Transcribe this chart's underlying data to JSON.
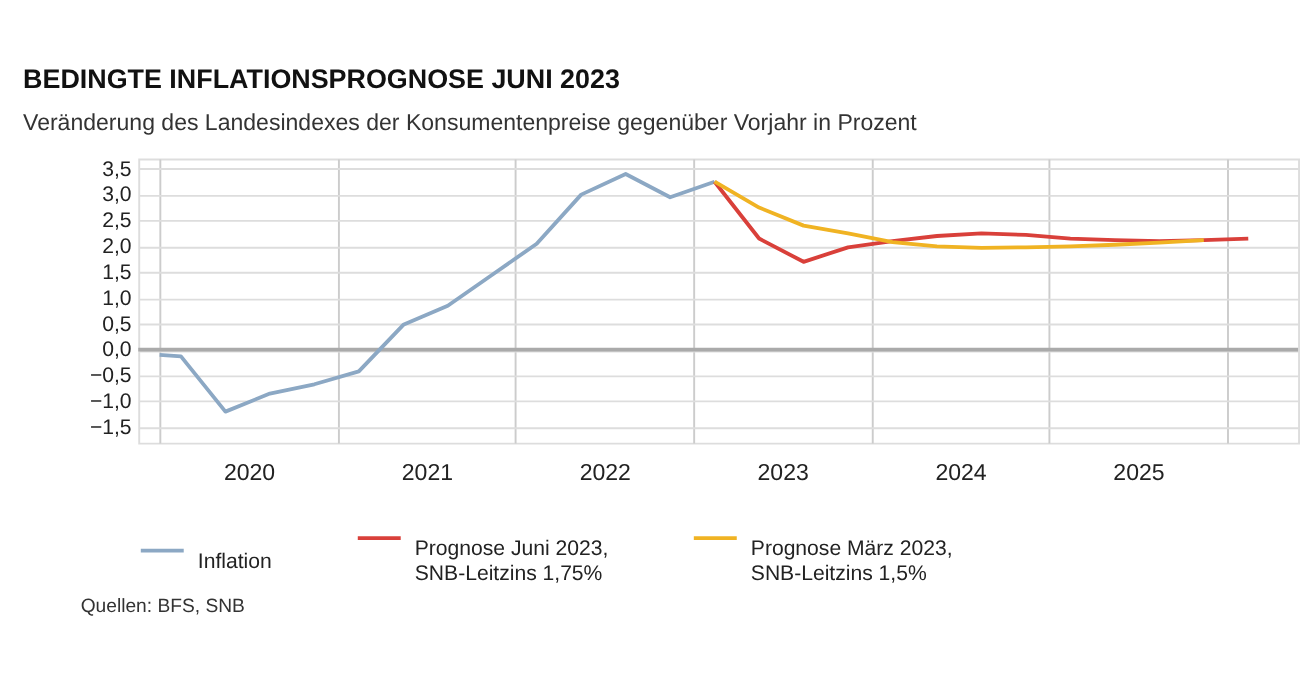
{
  "chart_data": {
    "type": "line",
    "title": "BEDINGTE INFLATIONSPROGNOSE JUNI 2023",
    "subtitle": "Veränderung des Landesindexes der Konsumentenpreise gegenüber Vorjahr in Prozent",
    "annotations": [
      "Quellen: BFS, SNB"
    ],
    "series": [
      {
        "name": "Inflation",
        "color": "#8ca8c4",
        "x": [
          2020.0,
          2020.12,
          2020.37,
          2020.62,
          2020.87,
          2021.12,
          2021.37,
          2021.62,
          2021.87,
          2022.12,
          2022.37,
          2022.62,
          2022.87,
          2023.12
        ],
        "values": [
          -0.1,
          -0.13,
          -1.2,
          -0.85,
          -0.67,
          -0.42,
          0.48,
          0.85,
          1.45,
          2.05,
          3.0,
          3.4,
          2.95,
          3.25
        ]
      },
      {
        "name": "Prognose Juni 2023,\nSNB-Leitzins 1,75%",
        "color": "#d9403a",
        "x": [
          2023.12,
          2023.37,
          2023.62,
          2023.87,
          2024.12,
          2024.37,
          2024.62,
          2024.87,
          2025.12,
          2025.37,
          2025.62,
          2025.87,
          2026.12
        ],
        "values": [
          3.25,
          2.15,
          1.7,
          1.98,
          2.1,
          2.2,
          2.25,
          2.22,
          2.15,
          2.12,
          2.1,
          2.12,
          2.15
        ]
      },
      {
        "name": "Prognose März 2023,\nSNB-Leitzins 1,5%",
        "color": "#f0b323",
        "x": [
          2023.12,
          2023.37,
          2023.62,
          2023.87,
          2024.12,
          2024.37,
          2024.62,
          2024.87,
          2025.12,
          2025.37,
          2025.62,
          2025.87
        ],
        "values": [
          3.25,
          2.75,
          2.4,
          2.25,
          2.08,
          2.0,
          1.97,
          1.98,
          2.0,
          2.03,
          2.07,
          2.12
        ]
      }
    ],
    "xlim": [
      2019.88,
      2026.4
    ],
    "xticks": [
      {
        "value": 2020,
        "label": null
      },
      {
        "value": 2020.5,
        "label": "2020"
      },
      {
        "value": 2021,
        "label": null
      },
      {
        "value": 2021.5,
        "label": "2021"
      },
      {
        "value": 2022,
        "label": null
      },
      {
        "value": 2022.5,
        "label": "2022"
      },
      {
        "value": 2023,
        "label": null
      },
      {
        "value": 2023.5,
        "label": "2023"
      },
      {
        "value": 2024,
        "label": null
      },
      {
        "value": 2024.5,
        "label": "2024"
      },
      {
        "value": 2025,
        "label": null
      },
      {
        "value": 2025.5,
        "label": "2025"
      },
      {
        "value": 2026,
        "label": null
      }
    ],
    "ylim": [
      -1.8,
      3.7
    ],
    "yticks": [
      {
        "value": -1.5,
        "label": "−1,5"
      },
      {
        "value": -1.0,
        "label": "−1,0"
      },
      {
        "value": -0.5,
        "label": "−0,5"
      },
      {
        "value": 0,
        "label": "0,0"
      },
      {
        "value": 0.5,
        "label": "0,5"
      },
      {
        "value": 1.0,
        "label": "1,0"
      },
      {
        "value": 1.5,
        "label": "1,5"
      },
      {
        "value": 2.0,
        "label": "2,0"
      },
      {
        "value": 2.5,
        "label": "2,5"
      },
      {
        "value": 3.0,
        "label": "3,0"
      },
      {
        "value": 3.5,
        "label": "3,5"
      }
    ],
    "ref_lines": [
      {
        "axis": "y",
        "value": 0,
        "color": "#aaaaaa"
      }
    ],
    "grid": true,
    "legend": "bottom",
    "marker": "none",
    "line_style": "solid"
  }
}
